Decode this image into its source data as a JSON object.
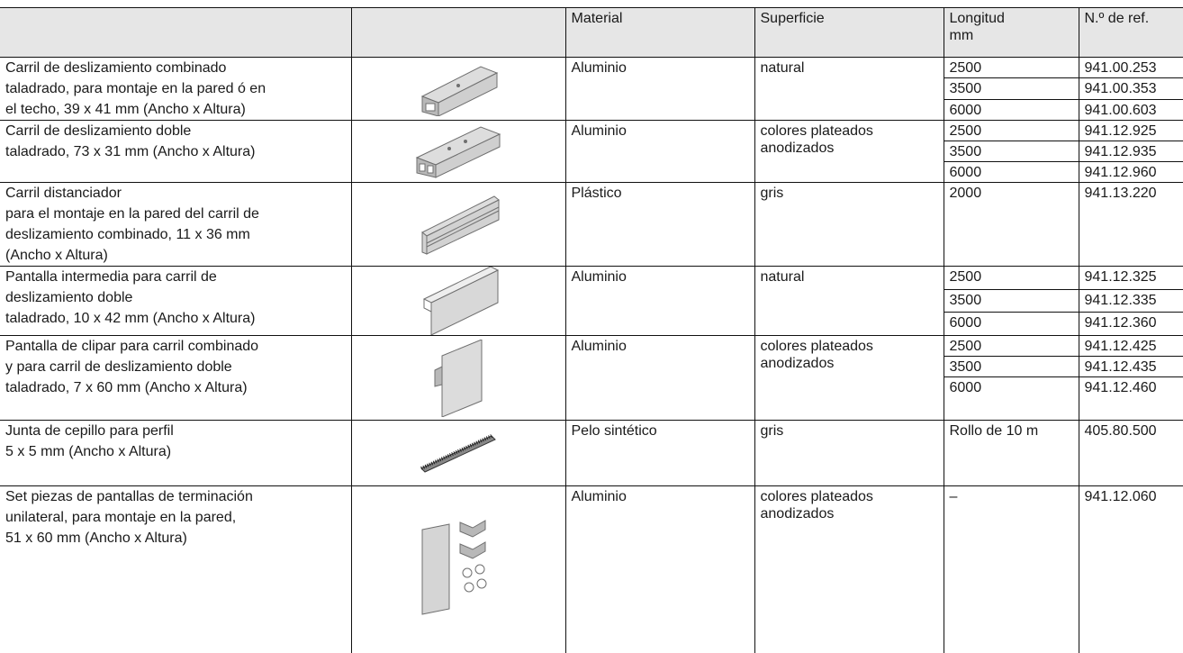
{
  "table": {
    "header": [
      "",
      "",
      "Material",
      "Superficie",
      "Longitud\nmm",
      "N.º de ref."
    ],
    "rows": [
      {
        "description": "Carril de deslizamiento combinado\ntaladrado, para montaje en la pared ó en\nel techo, 39 x 41 mm (Ancho x Altura)",
        "material": "Aluminio",
        "surface": "natural",
        "variants": [
          {
            "length": "2500",
            "ref": "941.00.253"
          },
          {
            "length": "3500",
            "ref": "941.00.353"
          },
          {
            "length": "6000",
            "ref": "941.00.603"
          }
        ]
      },
      {
        "description": "Carril de deslizamiento doble\ntaladrado, 73 x 31 mm (Ancho x Altura)",
        "material": "Aluminio",
        "surface": "colores plateados\nanodizados",
        "variants": [
          {
            "length": "2500",
            "ref": "941.12.925"
          },
          {
            "length": "3500",
            "ref": "941.12.935"
          },
          {
            "length": "6000",
            "ref": "941.12.960"
          }
        ]
      },
      {
        "description": "Carril distanciador\npara el montaje en la pared del carril de\ndeslizamiento combinado, 11 x 36 mm\n(Ancho x Altura)",
        "material": "Plástico",
        "surface": "gris",
        "variants": [
          {
            "length": "2000",
            "ref": "941.13.220"
          }
        ]
      },
      {
        "description": "Pantalla intermedia para carril de\ndeslizamiento doble\ntaladrado, 10 x 42 mm (Ancho x Altura)",
        "material": "Aluminio",
        "surface": "natural",
        "variants": [
          {
            "length": "2500",
            "ref": "941.12.325"
          },
          {
            "length": "3500",
            "ref": "941.12.335"
          },
          {
            "length": "6000",
            "ref": "941.12.360"
          }
        ]
      },
      {
        "description": "Pantalla de clipar para carril combinado\ny para carril de deslizamiento doble\ntaladrado, 7 x 60 mm (Ancho x Altura)",
        "material": "Aluminio",
        "surface": "colores plateados\nanodizados",
        "variants": [
          {
            "length": "2500",
            "ref": "941.12.425"
          },
          {
            "length": "3500",
            "ref": "941.12.435"
          },
          {
            "length": "6000",
            "ref": "941.12.460"
          }
        ]
      },
      {
        "description": "Junta de cepillo para perfil\n5 x 5 mm (Ancho x Altura)",
        "material": "Pelo sintético",
        "surface": "gris",
        "variants": [
          {
            "length": "Rollo de 10 m",
            "ref": "405.80.500"
          }
        ]
      },
      {
        "description": "Set piezas de pantallas de terminación\nunilateral, para montaje en la pared,\n51 x 60 mm (Ancho x Altura)",
        "material": "Aluminio",
        "surface": "colores plateados\nanodizados",
        "variants": [
          {
            "length": "–",
            "ref": "941.12.060"
          }
        ]
      }
    ]
  }
}
